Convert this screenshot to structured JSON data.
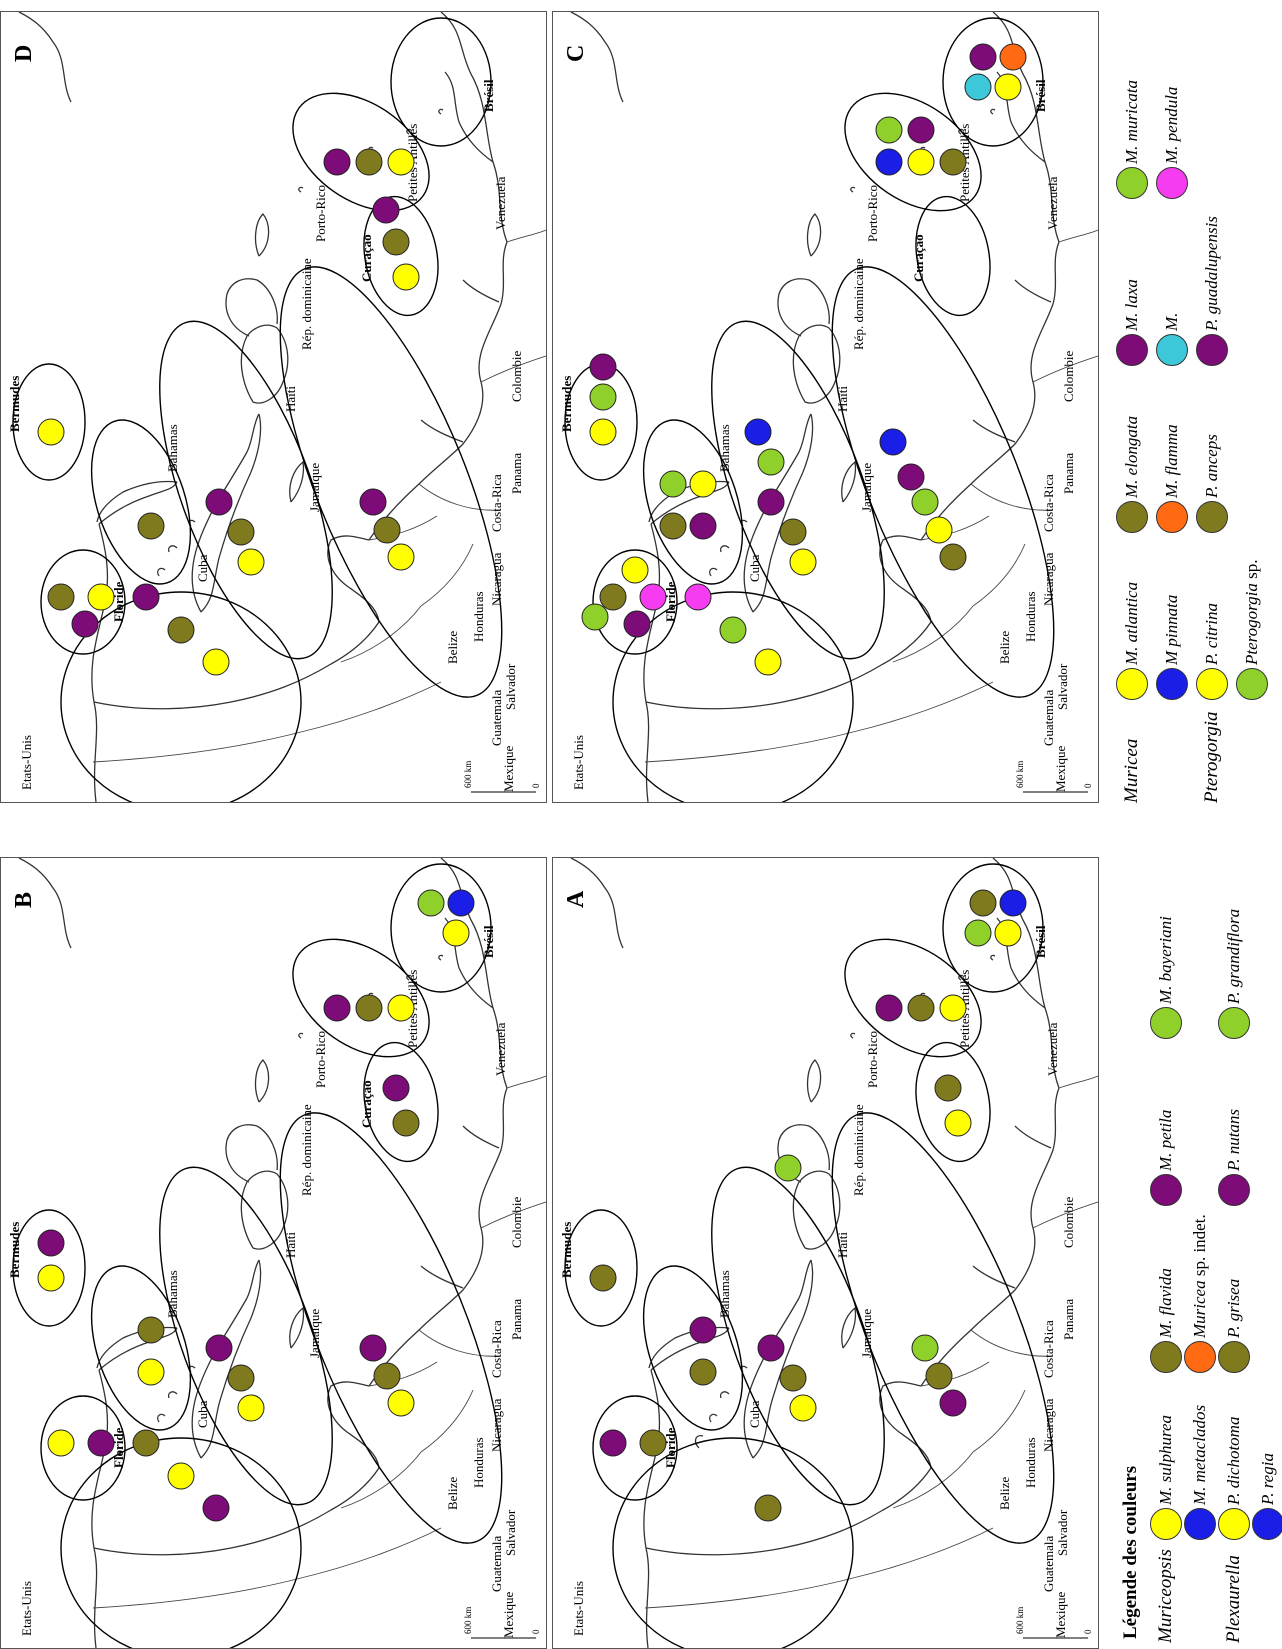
{
  "colors": {
    "yellow": "#ffff00",
    "olive": "#807a1e",
    "purple": "#7d0c78",
    "lime": "#8fd12a",
    "blue": "#1a1ee6",
    "orange": "#ff6a12",
    "magenta": "#f63cf0",
    "cyan": "#3cc8d8"
  },
  "map_labels": {
    "etats_unis": "Etats-Unis",
    "mexique": "Mexique",
    "guatemala": "Guatemala",
    "salvador": "Salvador",
    "belize": "Belize",
    "honduras": "Honduras",
    "nicaragua": "Nicaragua",
    "costa_rica": "Costa-Rica",
    "panama": "Panama",
    "colombie": "Colombie",
    "venezuela": "Venezuela",
    "cuba": "Cuba",
    "jamaique": "Jamaïque",
    "haiti": "Haïti",
    "rep_dominicaine": "Rép. dominicaine",
    "porto_rico": "Porto-Rico",
    "bahamas": "Bahamas",
    "floride": "Floride",
    "bermudes": "Bermudes",
    "curacao": "Curaçao",
    "petites_antilles": "Petites Antilles",
    "bresil": "Brésil",
    "scale_label": "600 km",
    "scale_zero": "0"
  },
  "panels": [
    {
      "label": "A",
      "curacao_label": "",
      "zones": {
        "gulf": [
          "olive"
        ],
        "florida": [
          "olive",
          "purple"
        ],
        "bahamas": [
          "olive",
          "purple"
        ],
        "bermuda": [
          "olive"
        ],
        "cuba": [
          "yellow",
          "olive",
          "purple"
        ],
        "hispaniola": [
          "lime"
        ],
        "central": [
          "purple",
          "olive",
          "lime"
        ],
        "curacao": [
          "yellow",
          "olive"
        ],
        "antilles": [
          "yellow",
          "olive",
          "purple"
        ],
        "bresil": [
          "yellow",
          "olive",
          "blue",
          "lime"
        ]
      }
    },
    {
      "label": "B",
      "curacao_label": "Curaçao",
      "zones": {
        "gulf": [
          "purple",
          "yellow",
          "olive"
        ],
        "florida": [
          "purple",
          "yellow"
        ],
        "bahamas": [
          "yellow",
          "olive"
        ],
        "bermuda": [
          "yellow",
          "purple"
        ],
        "cuba": [
          "yellow",
          "olive",
          "purple"
        ],
        "hispaniola": [],
        "central": [
          "yellow",
          "olive",
          "purple"
        ],
        "curacao": [
          "olive",
          "purple"
        ],
        "antilles": [
          "yellow",
          "olive",
          "purple"
        ],
        "bresil": [
          "yellow",
          "lime",
          "blue"
        ]
      }
    },
    {
      "label": "C",
      "curacao_label": "Curaçao",
      "zones": {
        "gulf": [
          "yellow",
          "lime",
          "magenta"
        ],
        "florida": [
          "magenta",
          "olive",
          "purple",
          "yellow",
          "lime"
        ],
        "bahamas": [
          "purple",
          "yellow",
          "olive",
          "lime"
        ],
        "bermuda": [
          "yellow",
          "lime",
          "purple"
        ],
        "cuba": [
          "yellow",
          "olive",
          "purple",
          "lime",
          "blue"
        ],
        "hispaniola": [],
        "central": [
          "olive",
          "yellow",
          "lime",
          "purple",
          "blue"
        ],
        "curacao": [],
        "antilles": [
          "olive",
          "yellow",
          "blue",
          "purple",
          "lime"
        ],
        "bresil": [
          "yellow",
          "purple",
          "orange",
          "cyan"
        ]
      }
    },
    {
      "label": "D",
      "curacao_label": "Curaçao",
      "zones": {
        "gulf": [
          "yellow",
          "olive",
          "purple"
        ],
        "florida": [
          "yellow",
          "olive",
          "purple"
        ],
        "bahamas": [
          "olive"
        ],
        "bermuda": [
          "yellow"
        ],
        "cuba": [
          "yellow",
          "olive",
          "purple"
        ],
        "hispaniola": [],
        "central": [
          "yellow",
          "olive",
          "purple"
        ],
        "curacao": [
          "yellow",
          "olive",
          "purple"
        ],
        "antilles": [
          "yellow",
          "olive",
          "purple"
        ],
        "bresil": []
      }
    }
  ],
  "legend": {
    "title": "Légende des couleurs",
    "rows": [
      {
        "genus": "Muriceopsis",
        "entries": [
          {
            "color": "yellow",
            "name": "M. sulphurea",
            "suffix": ""
          },
          {
            "color": "olive",
            "name": "M. flavida",
            "suffix": ""
          },
          {
            "color": "purple",
            "name": "M. petila",
            "suffix": ""
          },
          {
            "color": "lime",
            "name": "M. bayeriani",
            "suffix": ""
          }
        ]
      },
      {
        "genus": "",
        "entries": [
          {
            "color": "blue",
            "name": "M. metaclados",
            "suffix": ""
          },
          {
            "color": "orange",
            "name": "Muricea",
            "suffix": " sp. indet."
          }
        ]
      },
      {
        "genus": "Plexaurella",
        "entries": [
          {
            "color": "yellow",
            "name": "P. dichotoma",
            "suffix": ""
          },
          {
            "color": "olive",
            "name": "P. grisea",
            "suffix": ""
          },
          {
            "color": "purple",
            "name": "P. nutans",
            "suffix": ""
          },
          {
            "color": "lime",
            "name": "P. grandiflora",
            "suffix": ""
          }
        ]
      },
      {
        "genus": "",
        "entries": [
          {
            "color": "blue",
            "name": "P. regia",
            "suffix": ""
          }
        ]
      }
    ],
    "right_rows": [
      {
        "genus": "Muricea",
        "entries": [
          {
            "color": "yellow",
            "name": "M. atlantica",
            "suffix": ""
          },
          {
            "color": "olive",
            "name": "M. elongata",
            "suffix": ""
          },
          {
            "color": "purple",
            "name": "M. laxa",
            "suffix": ""
          },
          {
            "color": "lime",
            "name": "M. muricata",
            "suffix": ""
          }
        ]
      },
      {
        "genus": "",
        "entries": [
          {
            "color": "blue",
            "name": "M pinnata",
            "suffix": ""
          },
          {
            "color": "orange",
            "name": "M. flamma",
            "suffix": ""
          },
          {
            "color": "cyan",
            "name": "M.",
            "suffix": ""
          },
          {
            "color": "magenta",
            "name": "M. pendula",
            "suffix": ""
          }
        ]
      },
      {
        "genus": "Pterogorgia",
        "entries": [
          {
            "color": "yellow",
            "name": "P. citrina",
            "suffix": ""
          },
          {
            "color": "olive",
            "name": "P. anceps",
            "suffix": ""
          },
          {
            "color": "purple",
            "name": "P. guadalupensis",
            "suffix": ""
          }
        ]
      },
      {
        "genus": "",
        "entries": [
          {
            "color": "lime",
            "name": "Pterogorgia",
            "suffix": " sp."
          }
        ]
      }
    ]
  }
}
